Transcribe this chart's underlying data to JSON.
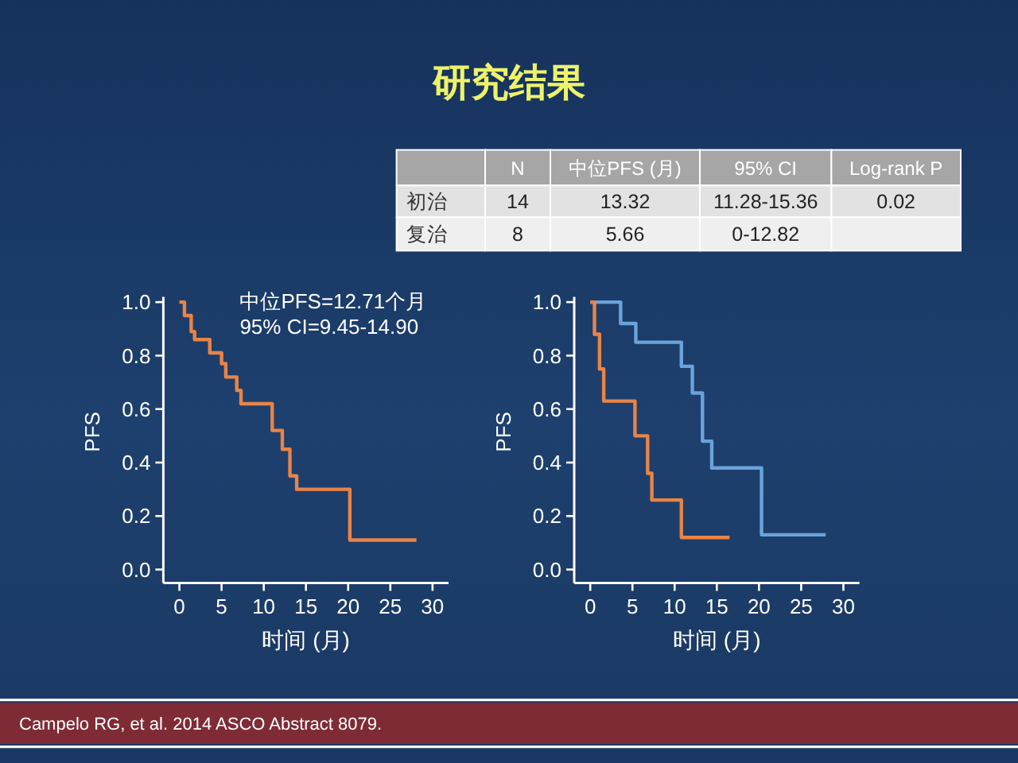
{
  "chart_data": [
    {
      "type": "other",
      "title": "研究结果",
      "categories": [
        null,
        "N",
        "中位PFS (月)",
        "95% CI",
        "Log-rank P"
      ],
      "y_categories": [
        "初治",
        "复治"
      ],
      "cell_labels": [
        [
          "14",
          "13.32",
          "11.28-15.36",
          "0.02"
        ],
        [
          "8",
          "5.66",
          "0-12.82",
          null
        ]
      ]
    },
    {
      "type": "step",
      "x": [
        0,
        0.6,
        1.4,
        1.8,
        3.6,
        5.0,
        5.5,
        6.8,
        7.3,
        11.0,
        12.2,
        13.1,
        13.9,
        20.2,
        28.1
      ],
      "values": [
        1.0,
        0.95,
        0.89,
        0.86,
        0.81,
        0.77,
        0.72,
        0.67,
        0.62,
        0.52,
        0.45,
        0.35,
        0.3,
        0.11,
        0.11
      ],
      "color": "#e98446",
      "xlabel": "时间 (月)",
      "ylabel": "PFS",
      "xlim": [
        -1.9,
        31.9
      ],
      "ylim": [
        -0.05,
        1.02
      ],
      "xticks": [
        0,
        5,
        10,
        15,
        20,
        25,
        30
      ],
      "yticks": [
        {
          "value": 0,
          "label": "0.0"
        },
        {
          "value": 0.2,
          "label": "0.2"
        },
        {
          "value": 0.4,
          "label": "0.4"
        },
        {
          "value": 0.6,
          "label": "0.6"
        },
        {
          "value": 0.8,
          "label": "0.8"
        },
        {
          "value": 1,
          "label": "1.0"
        }
      ],
      "annotations": [
        "中位PFS=12.71个月",
        "95% CI=9.45-14.90"
      ]
    },
    {
      "type": "step",
      "series": [
        {
          "color": "#6aa3dc",
          "x": [
            0,
            3.6,
            5.4,
            10.8,
            12.1,
            13.3,
            14.4,
            20.3,
            27.9
          ],
          "values": [
            1.0,
            0.92,
            0.85,
            0.76,
            0.66,
            0.48,
            0.38,
            0.13,
            0.13
          ]
        },
        {
          "color": "#e98446",
          "x": [
            0,
            0.5,
            1.1,
            1.6,
            5.3,
            6.8,
            7.3,
            10.8,
            16.5
          ],
          "values": [
            1.0,
            0.88,
            0.75,
            0.63,
            0.5,
            0.36,
            0.26,
            0.12,
            0.12
          ]
        }
      ],
      "xlabel": "时间 (月)",
      "ylabel": "PFS",
      "xlim": [
        -1.9,
        31.9
      ],
      "ylim": [
        -0.05,
        1.02
      ],
      "xticks": [
        0,
        5,
        10,
        15,
        20,
        25,
        30
      ],
      "yticks": [
        {
          "value": 0,
          "label": "0.0"
        },
        {
          "value": 0.2,
          "label": "0.2"
        },
        {
          "value": 0.4,
          "label": "0.4"
        },
        {
          "value": 0.6,
          "label": "0.6"
        },
        {
          "value": 0.8,
          "label": "0.8"
        },
        {
          "value": 1,
          "label": "1.0"
        }
      ],
      "annotations": [
        "Campelo RG, et al. 2014 ASCO Abstract 8079."
      ]
    }
  ]
}
